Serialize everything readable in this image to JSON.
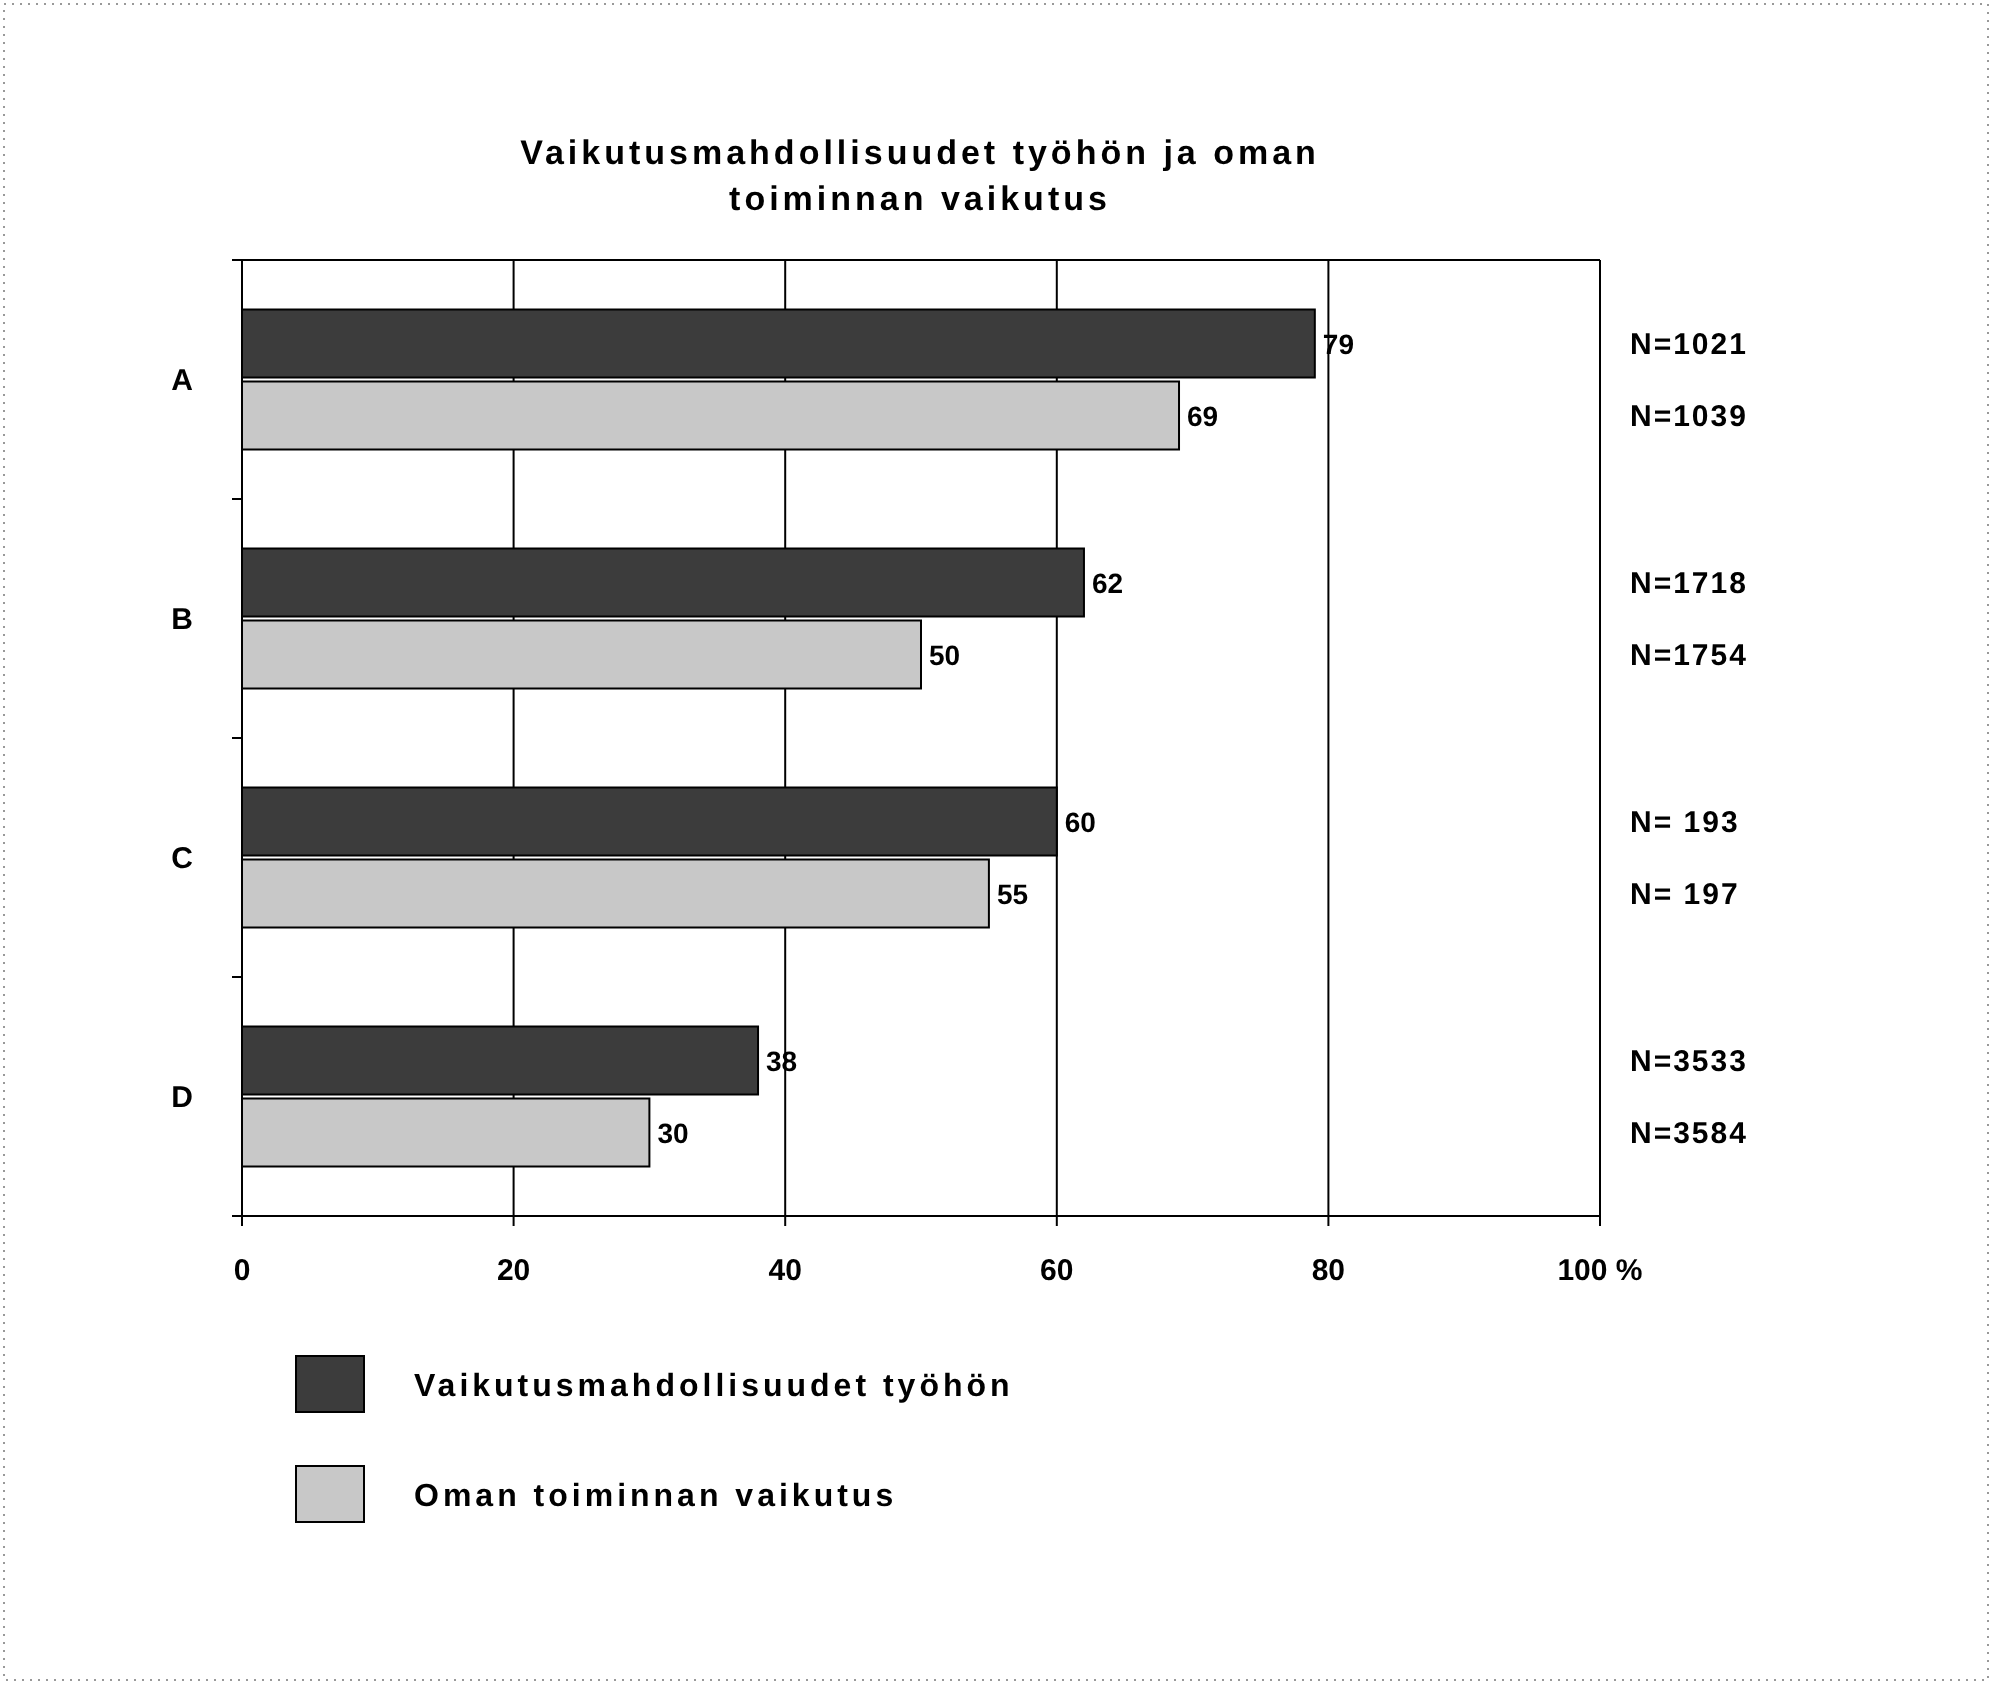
{
  "chart_data": {
    "type": "bar",
    "orientation": "horizontal",
    "title": "Vaikutusmahdollisuudet työhön ja oman toiminnan vaikutus",
    "categories": [
      "A",
      "B",
      "C",
      "D"
    ],
    "series": [
      {
        "name": "Vaikutusmahdollisuudet työhön",
        "color": "#3c3c3c",
        "values": [
          79,
          62,
          60,
          38
        ]
      },
      {
        "name": "Oman toiminnan vaikutus",
        "color": "#c8c8c8",
        "values": [
          69,
          50,
          55,
          30
        ]
      }
    ],
    "xlim": [
      0,
      100
    ],
    "xticks": [
      0,
      20,
      40,
      60,
      80,
      {
        "value": 100,
        "label": "100 %"
      }
    ],
    "grid": "x",
    "legend": "bottom",
    "data_labels": true,
    "annotations": [
      "N=1021",
      "N=1039",
      "N=1718",
      "N=1754",
      "N= 193",
      "N= 197",
      "N=3533",
      "N=3584"
    ]
  }
}
